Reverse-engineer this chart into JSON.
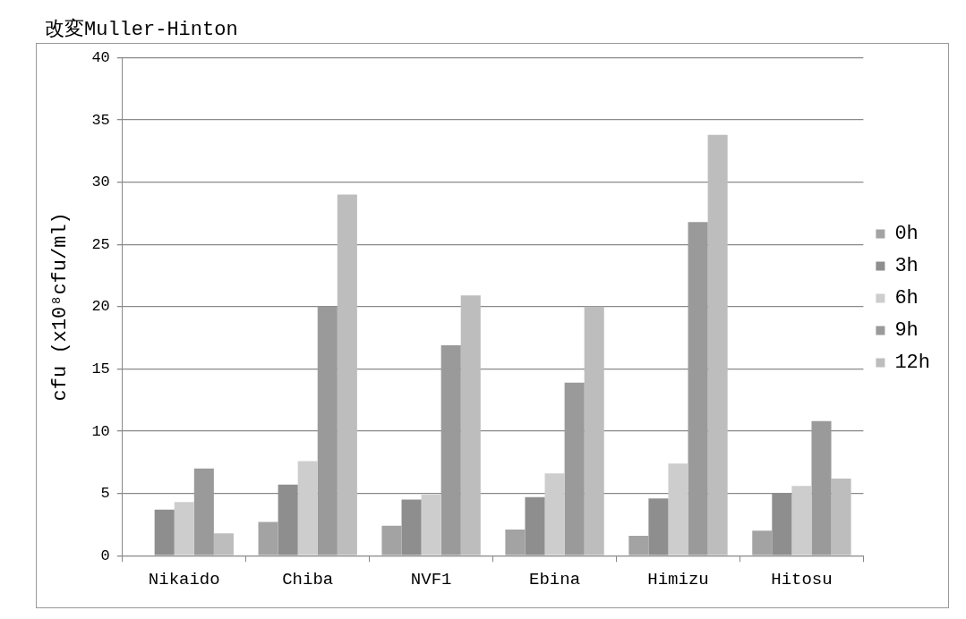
{
  "chart_data": {
    "type": "bar",
    "title": "改変Muller-Hinton",
    "ylabel": "cfu (x10⁸cfu/ml)",
    "categories": [
      "Nikaido",
      "Chiba",
      "NVF1",
      "Ebina",
      "Himizu",
      "Hitosu"
    ],
    "series": [
      {
        "name": "0h",
        "color": "#a3a3a3",
        "values": [
          0,
          2.7,
          2.4,
          2.1,
          1.6,
          2.0
        ]
      },
      {
        "name": "3h",
        "color": "#8e8e8e",
        "values": [
          3.7,
          5.7,
          4.5,
          4.7,
          4.6,
          5.0
        ]
      },
      {
        "name": "6h",
        "color": "#cdcdcd",
        "values": [
          4.3,
          7.6,
          4.9,
          6.6,
          7.4,
          5.6
        ]
      },
      {
        "name": "9h",
        "color": "#9a9a9a",
        "values": [
          7.0,
          20.0,
          16.9,
          13.9,
          26.8,
          10.8
        ]
      },
      {
        "name": "12h",
        "color": "#bdbdbd",
        "values": [
          1.8,
          29.0,
          20.9,
          20.0,
          33.8,
          6.2
        ]
      }
    ],
    "ylim": [
      0,
      40
    ],
    "yticks": [
      0,
      5,
      10,
      15,
      20,
      25,
      30,
      35,
      40
    ],
    "grid": "y",
    "legend": "right"
  }
}
